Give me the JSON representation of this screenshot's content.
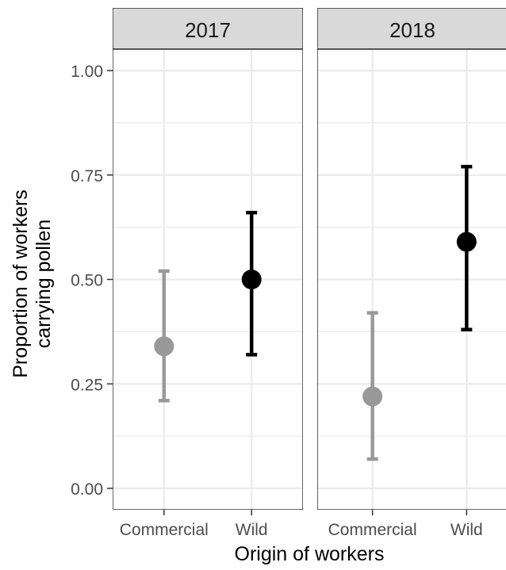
{
  "chart_data": {
    "type": "scatter",
    "subtype": "point-with-error-bars",
    "xlabel": "Origin of workers",
    "ylabel": [
      "Proportion of workers",
      "carrying pollen"
    ],
    "ylim": [
      0,
      1
    ],
    "y_ticks": [
      "0.00",
      "0.25",
      "0.50",
      "0.75",
      "1.00"
    ],
    "y_tick_values": [
      0,
      0.25,
      0.5,
      0.75,
      1.0
    ],
    "categories": [
      "Commercial",
      "Wild"
    ],
    "colors": {
      "Commercial": "#999999",
      "Wild": "#000000",
      "strip_fill": "#d9d9d9",
      "grid": "#ebebeb"
    },
    "grid": true,
    "legend": "none",
    "facets": [
      {
        "label": "2017",
        "points": [
          {
            "category": "Commercial",
            "y": 0.34,
            "ymin": 0.21,
            "ymax": 0.52
          },
          {
            "category": "Wild",
            "y": 0.5,
            "ymin": 0.32,
            "ymax": 0.66
          }
        ]
      },
      {
        "label": "2018",
        "points": [
          {
            "category": "Commercial",
            "y": 0.22,
            "ymin": 0.07,
            "ymax": 0.42
          },
          {
            "category": "Wild",
            "y": 0.59,
            "ymin": 0.38,
            "ymax": 0.77
          }
        ]
      }
    ]
  }
}
